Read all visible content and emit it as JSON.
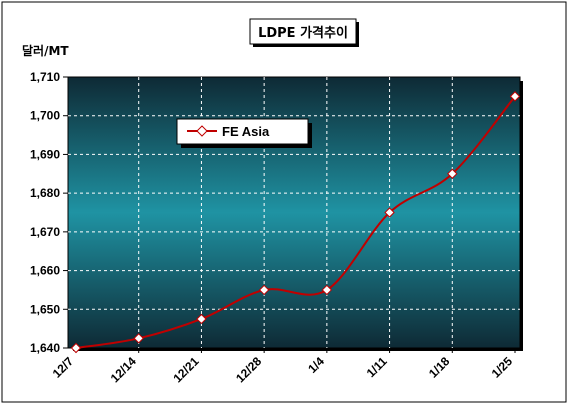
{
  "chart_data": {
    "type": "line",
    "title": "LDPE 가격추이",
    "ylabel": "달러/MT",
    "xlabel": "",
    "categories": [
      "12/7",
      "12/14",
      "12/21",
      "12/28",
      "1/4",
      "1/11",
      "1/18",
      "1/25"
    ],
    "series": [
      {
        "name": "FE Asia",
        "values": [
          1640,
          1642.5,
          1647.5,
          1655,
          1655,
          1675,
          1685,
          1705
        ]
      }
    ],
    "ylim": [
      1640,
      1710
    ],
    "ytick_step": 10,
    "y_tick_labels": [
      "1,640",
      "1,650",
      "1,660",
      "1,670",
      "1,680",
      "1,690",
      "1,700",
      "1,710"
    ],
    "grid": true,
    "legend_position": "top-left",
    "colors": {
      "line": "#c00000",
      "marker_fill": "#ffffff",
      "plot_top": "#0e2a35",
      "plot_mid": "#1f8fa0",
      "plot_bottom": "#0e2a35",
      "grid": "#ffffff"
    }
  }
}
